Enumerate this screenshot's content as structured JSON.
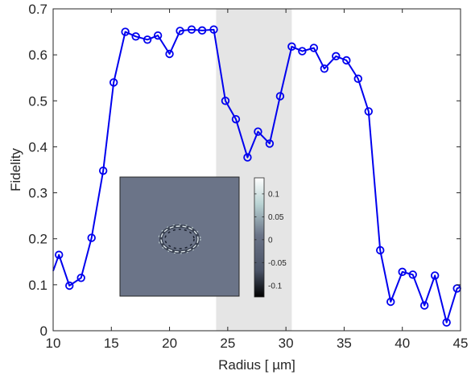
{
  "chart_data": {
    "type": "line",
    "xlabel": "Radius [ µm]",
    "ylabel": "Fidelity",
    "xlim": [
      10,
      45
    ],
    "ylim": [
      0,
      0.7
    ],
    "xticks": [
      "10",
      "15",
      "20",
      "25",
      "30",
      "35",
      "40",
      "45"
    ],
    "yticks": [
      "0",
      "0.1",
      "0.2",
      "0.3",
      "0.4",
      "0.5",
      "0.6",
      "0.7"
    ],
    "grid": false,
    "shaded_region": [
      24,
      30.5
    ],
    "series": [
      {
        "marker": "circle",
        "color": "#0000ee",
        "x": [
          10,
          10.5,
          11.4,
          12.4,
          13.3,
          14.3,
          15.2,
          16.2,
          17.1,
          18.1,
          19.0,
          20.0,
          20.9,
          21.9,
          22.8,
          23.8,
          24.8,
          25.7,
          26.7,
          27.6,
          28.6,
          29.5,
          30.5,
          31.4,
          32.4,
          33.3,
          34.3,
          35.2,
          36.2,
          37.1,
          38.1,
          39.0,
          40.0,
          40.9,
          41.9,
          42.8,
          43.8,
          44.7,
          45
        ],
        "y": [
          0.13,
          0.165,
          0.098,
          0.115,
          0.202,
          0.348,
          0.54,
          0.65,
          0.64,
          0.633,
          0.642,
          0.602,
          0.652,
          0.655,
          0.653,
          0.655,
          0.5,
          0.46,
          0.377,
          0.433,
          0.407,
          0.51,
          0.618,
          0.608,
          0.615,
          0.57,
          0.597,
          0.588,
          0.548,
          0.477,
          0.175,
          0.063,
          0.128,
          0.122,
          0.055,
          0.12,
          0.018,
          0.092,
          0.095
        ],
        "markers": [
          false,
          true,
          true,
          true,
          true,
          true,
          true,
          true,
          true,
          true,
          true,
          true,
          true,
          true,
          true,
          true,
          true,
          true,
          true,
          true,
          true,
          true,
          true,
          true,
          true,
          true,
          true,
          true,
          true,
          true,
          true,
          true,
          true,
          true,
          true,
          true,
          true,
          true,
          false
        ]
      }
    ],
    "inset": {
      "type": "heatmap",
      "colorbar_ticks": [
        "0.1",
        "0.05",
        "0",
        "-0.05",
        "-0.1"
      ],
      "colorbar_values": [
        0.1,
        0.05,
        0,
        -0.05,
        -0.1
      ],
      "colorbar_range": [
        -0.125,
        0.135
      ],
      "background_color": "#6b7488",
      "colormap": [
        "#000000",
        "#4a5366",
        "#6b7488",
        "#b9d3d3",
        "#ffffff"
      ]
    }
  }
}
